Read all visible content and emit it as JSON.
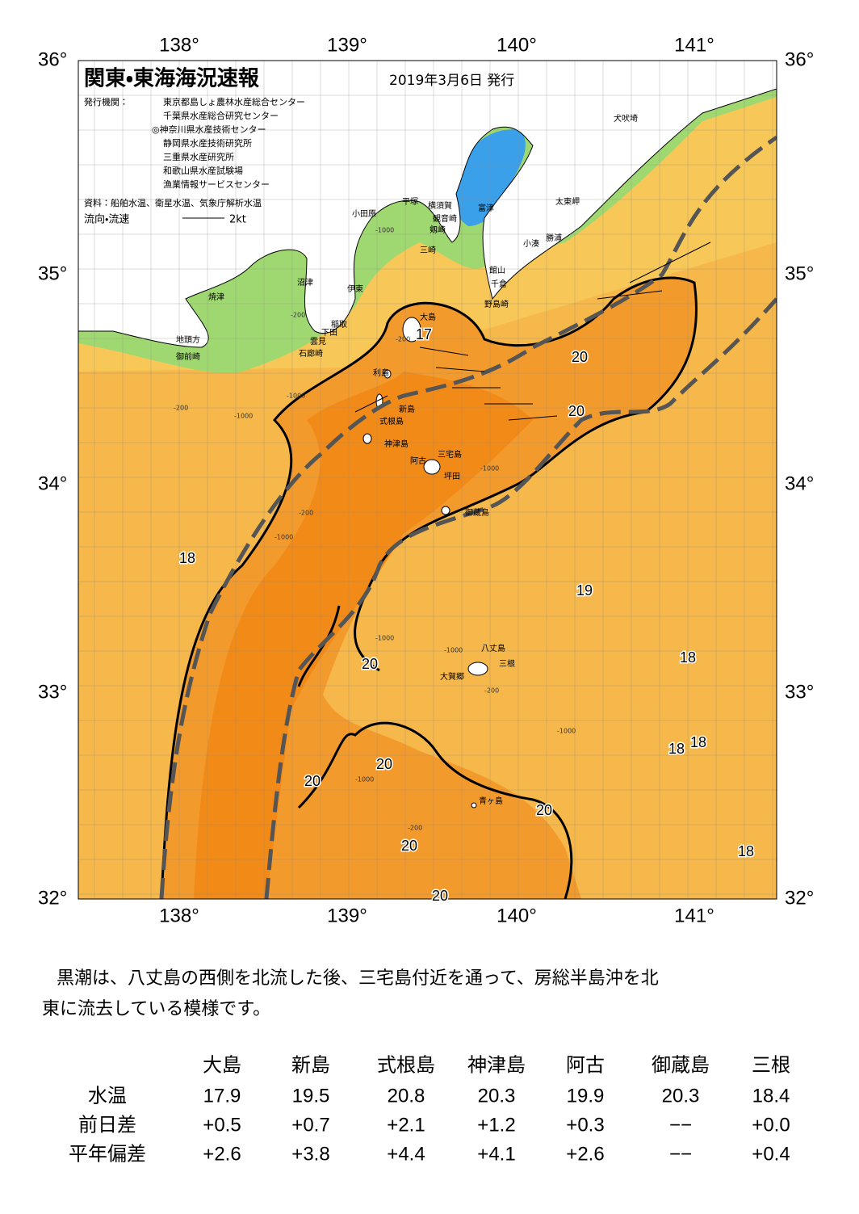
{
  "map": {
    "title": "関東・東海海況速報",
    "date": "2019年3月6日 発行",
    "issuer_label": "発行機関：",
    "issuers": [
      "東京都島しょ農林水産総合センター",
      "千葉県水産総合研究センター",
      "◎神奈川県水産技術センター",
      "静岡県水産技術研究所",
      "三重県水産研究所",
      "和歌山県水産試験場",
      "漁業情報サービスセンター"
    ],
    "source": "資料：船舶水温、衛星水温、気象庁解析水温",
    "current_legend": "流向・流速",
    "current_scale": "2kt",
    "lon_labels": [
      "138°",
      "139°",
      "140°",
      "141°"
    ],
    "lat_labels": [
      "36°",
      "35°",
      "34°",
      "33°",
      "32°"
    ],
    "places": [
      "犬吠埼",
      "太東岬",
      "勝浦",
      "小湊",
      "富津",
      "横須賀",
      "観音崎",
      "剱崎",
      "三崎",
      "平塚",
      "小田原",
      "館山",
      "千倉",
      "野島崎",
      "沼津",
      "伊東",
      "稲取",
      "下田",
      "雲見",
      "石廊崎",
      "焼津",
      "地頭方",
      "御前崎",
      "大島",
      "利島",
      "新島",
      "式根島",
      "神津島",
      "三宅島",
      "阿古",
      "坪田",
      "御蔵島",
      "八丈島",
      "三根",
      "大賀郷",
      "青ヶ島"
    ],
    "contour_labels": [
      "17",
      "20",
      "20",
      "18",
      "19",
      "20",
      "18",
      "18",
      "18",
      "20",
      "20",
      "20",
      "20",
      "18",
      "20"
    ],
    "depth_labels": [
      "-200",
      "-1000",
      "-200",
      "-1000",
      "-200",
      "-1000",
      "-1000",
      "-200",
      "-1000",
      "-1000",
      "-1000",
      "-1000",
      "-200",
      "-1000",
      "-200"
    ]
  },
  "summary": [
    "黒潮は、八丈島の西側を北流した後、三宅島付近を通って、房総半島沖を北",
    "東に流去している模様です。"
  ],
  "table": {
    "columns": [
      "大島",
      "新島",
      "式根島",
      "神津島",
      "阿古",
      "御蔵島",
      "三根"
    ],
    "rows": [
      {
        "label": "水温",
        "values": [
          "17.9",
          "19.5",
          "20.8",
          "20.3",
          "19.9",
          "20.3",
          "18.4"
        ]
      },
      {
        "label": "前日差",
        "values": [
          "+0.5",
          "+0.7",
          "+2.1",
          "+1.2",
          "+0.3",
          "−−",
          "+0.0"
        ]
      },
      {
        "label": "平年偏差",
        "values": [
          "+2.6",
          "+3.8",
          "+4.4",
          "+4.1",
          "+2.6",
          "−−",
          "+0.4"
        ]
      }
    ]
  }
}
